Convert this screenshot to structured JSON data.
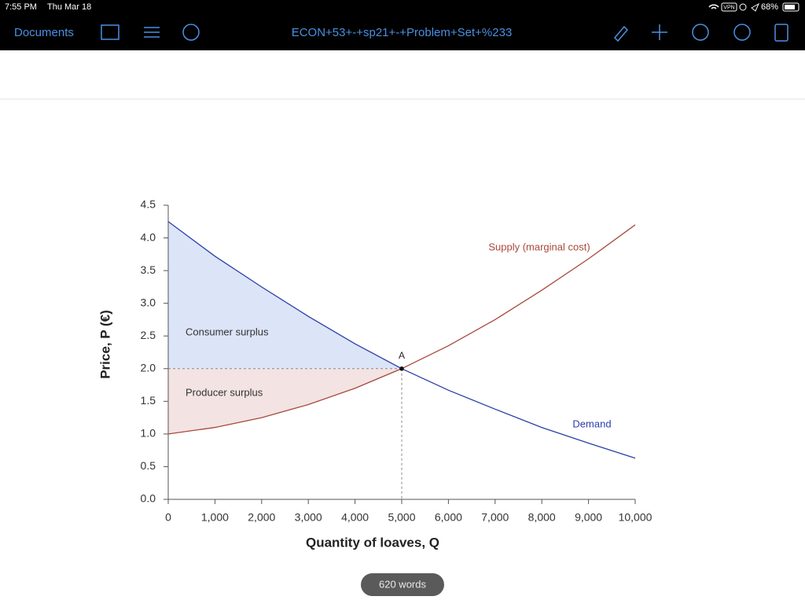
{
  "status_bar": {
    "time": "7:55 PM",
    "date": "Thu Mar 18",
    "vpn": "VPN",
    "battery": "68%"
  },
  "toolbar": {
    "back": "Documents",
    "title": "ECON+53+-+sp21+-+Problem+Set+%233"
  },
  "chart_data": {
    "type": "line",
    "x": [
      0,
      1000,
      2000,
      3000,
      4000,
      5000,
      6000,
      7000,
      8000,
      9000,
      10000
    ],
    "series": [
      {
        "name": "Demand",
        "color": "#2b3fa8",
        "values": [
          4.25,
          3.72,
          3.25,
          2.8,
          2.38,
          2.0,
          1.67,
          1.38,
          1.1,
          0.86,
          0.63
        ]
      },
      {
        "name": "Supply (marginal cost)",
        "color": "#a8493a",
        "values": [
          1.0,
          1.1,
          1.25,
          1.45,
          1.7,
          2.0,
          2.35,
          2.75,
          3.2,
          3.68,
          4.2
        ]
      }
    ],
    "equilibrium": {
      "x": 5000,
      "y": 2.0,
      "label": "A"
    },
    "areas": [
      {
        "label": "Consumer surplus",
        "color": "#dce4f7"
      },
      {
        "label": "Producer surplus",
        "color": "#f3e3e3"
      }
    ],
    "xlabel": "Quantity of loaves, Q",
    "ylabel": "Price, P (€)",
    "xlim": [
      0,
      10000
    ],
    "ylim": [
      0,
      4.5
    ],
    "xticks": [
      0,
      {
        "value": 1000,
        "label": "1,000"
      },
      {
        "value": 2000,
        "label": "2,000"
      },
      {
        "value": 3000,
        "label": "3,000"
      },
      {
        "value": 4000,
        "label": "4,000"
      },
      {
        "value": 5000,
        "label": "5,000"
      },
      {
        "value": 6000,
        "label": "6,000"
      },
      {
        "value": 7000,
        "label": "7,000"
      },
      {
        "value": 8000,
        "label": "8,000"
      },
      {
        "value": 9000,
        "label": "9,000"
      },
      {
        "value": 10000,
        "label": "10,000"
      }
    ],
    "yticks": [
      {
        "value": 0,
        "label": "0.0"
      },
      0.5,
      {
        "value": 1,
        "label": "1.0"
      },
      1.5,
      {
        "value": 2,
        "label": "2.0"
      },
      2.5,
      {
        "value": 3,
        "label": "3.0"
      },
      3.5,
      {
        "value": 4,
        "label": "4.0"
      },
      4.5
    ]
  },
  "word_count": "620 words"
}
